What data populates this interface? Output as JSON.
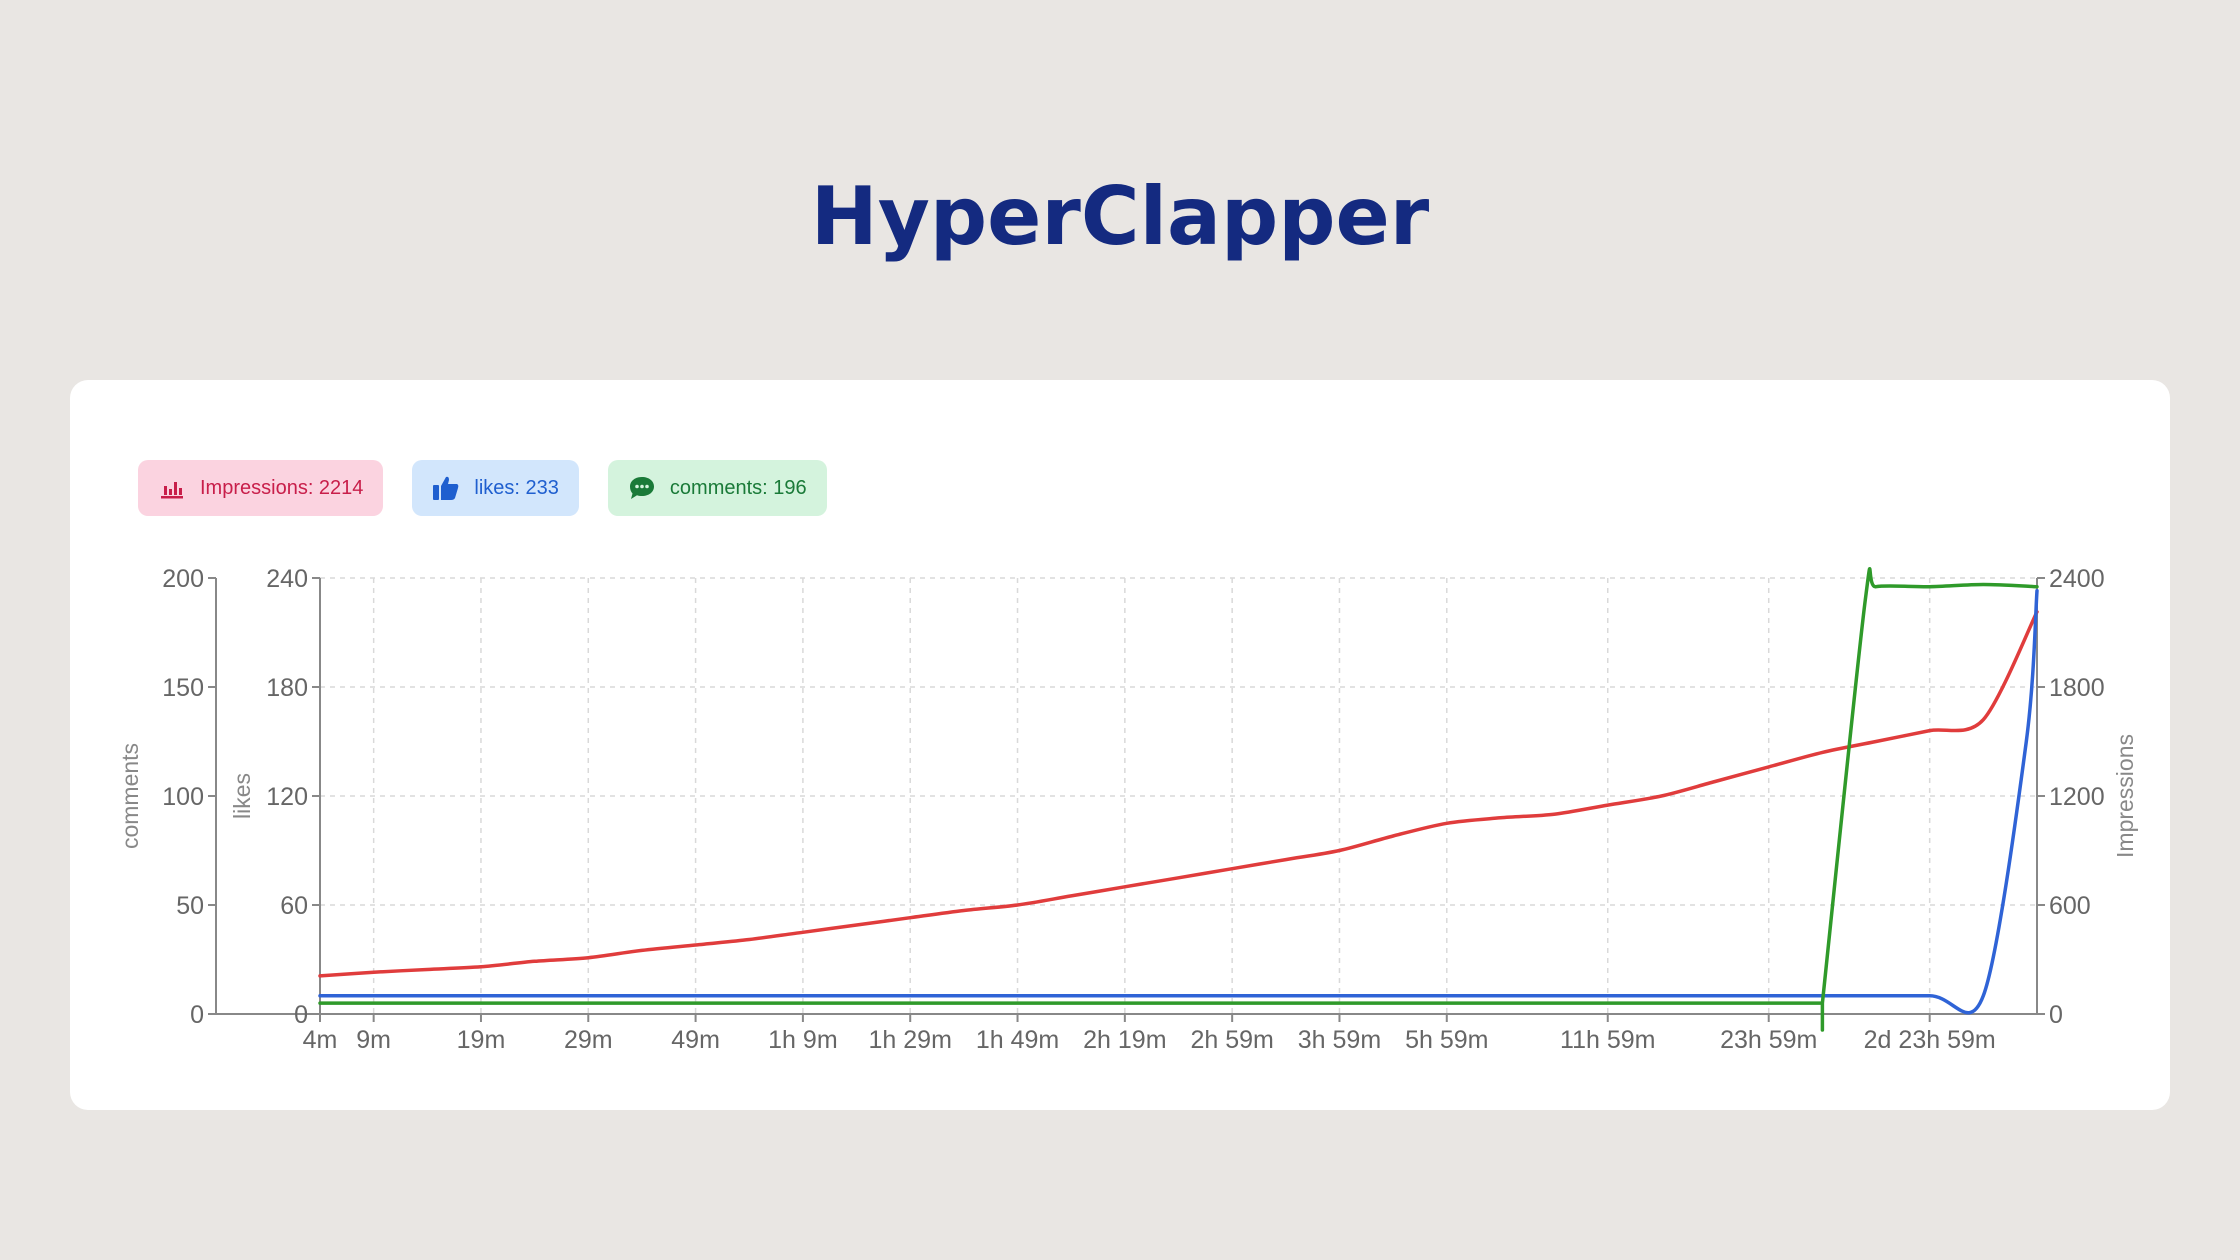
{
  "page": {
    "title": "HyperClapper"
  },
  "badges": {
    "impressions": {
      "label": "Impressions: 2214",
      "icon": "bar-chart-icon",
      "color": "#c81e4a"
    },
    "likes": {
      "label": "likes: 233",
      "icon": "thumbs-up-icon",
      "color": "#1f5fcf"
    },
    "comments": {
      "label": "comments: 196",
      "icon": "chat-bubble-icon",
      "color": "#1a7a38"
    }
  },
  "chart_data": {
    "type": "line",
    "grid": true,
    "x_categories": [
      "4m",
      "9m",
      "19m",
      "29m",
      "49m",
      "1h 9m",
      "1h 29m",
      "1h 49m",
      "2h 19m",
      "2h 59m",
      "3h 59m",
      "5h 59m",
      "11h 59m",
      "23h 59m",
      "2d 23h 59m"
    ],
    "x_category_positions": [
      0,
      0.5,
      1.5,
      2.5,
      3.5,
      4.5,
      5.5,
      6.5,
      7.5,
      8.5,
      9.5,
      10.5,
      12,
      13.5,
      15
    ],
    "x_range": [
      0,
      16
    ],
    "axes": {
      "comments": {
        "label": "comments",
        "side": "left-outer",
        "range": [
          0,
          200
        ],
        "ticks": [
          0,
          50,
          100,
          150,
          200
        ]
      },
      "likes": {
        "label": "likes",
        "side": "left-inner",
        "range": [
          0,
          240
        ],
        "ticks": [
          0,
          60,
          120,
          180,
          240
        ]
      },
      "impressions": {
        "label": "Impressions",
        "side": "right",
        "range": [
          0,
          2400
        ],
        "ticks": [
          0,
          600,
          1200,
          1800,
          2400
        ]
      }
    },
    "series": [
      {
        "name": "Impressions",
        "axis": "impressions",
        "color": "#e03c3c",
        "x": [
          0,
          0.5,
          1,
          1.5,
          2,
          2.5,
          3,
          3.5,
          4,
          4.5,
          5,
          5.5,
          6,
          6.5,
          7,
          7.5,
          8,
          8.5,
          9,
          9.5,
          10,
          10.5,
          11,
          11.5,
          12,
          12.5,
          13,
          13.5,
          14,
          14.5,
          15,
          15.5,
          16
        ],
        "values": [
          210,
          230,
          245,
          260,
          290,
          310,
          350,
          380,
          410,
          450,
          490,
          530,
          570,
          600,
          650,
          700,
          750,
          800,
          850,
          900,
          980,
          1050,
          1080,
          1100,
          1150,
          1200,
          1280,
          1360,
          1440,
          1500,
          1560,
          1620,
          2214
        ]
      },
      {
        "name": "likes",
        "axis": "likes",
        "color": "#2f63d6",
        "x": [
          0,
          2,
          4,
          6,
          8,
          10,
          12,
          14,
          15,
          15.5,
          15.9,
          16
        ],
        "values": [
          10,
          10,
          10,
          10,
          10,
          10,
          10,
          10,
          10,
          10,
          150,
          233
        ]
      },
      {
        "name": "comments",
        "axis": "comments",
        "color": "#2f9a2a",
        "x": [
          0,
          2,
          4,
          6,
          8,
          10,
          12,
          14,
          14,
          14.4,
          14.5,
          15,
          15.5,
          16
        ],
        "values": [
          5,
          5,
          5,
          5,
          5,
          5,
          5,
          5,
          5,
          190,
          196,
          196,
          197,
          196
        ]
      }
    ]
  }
}
